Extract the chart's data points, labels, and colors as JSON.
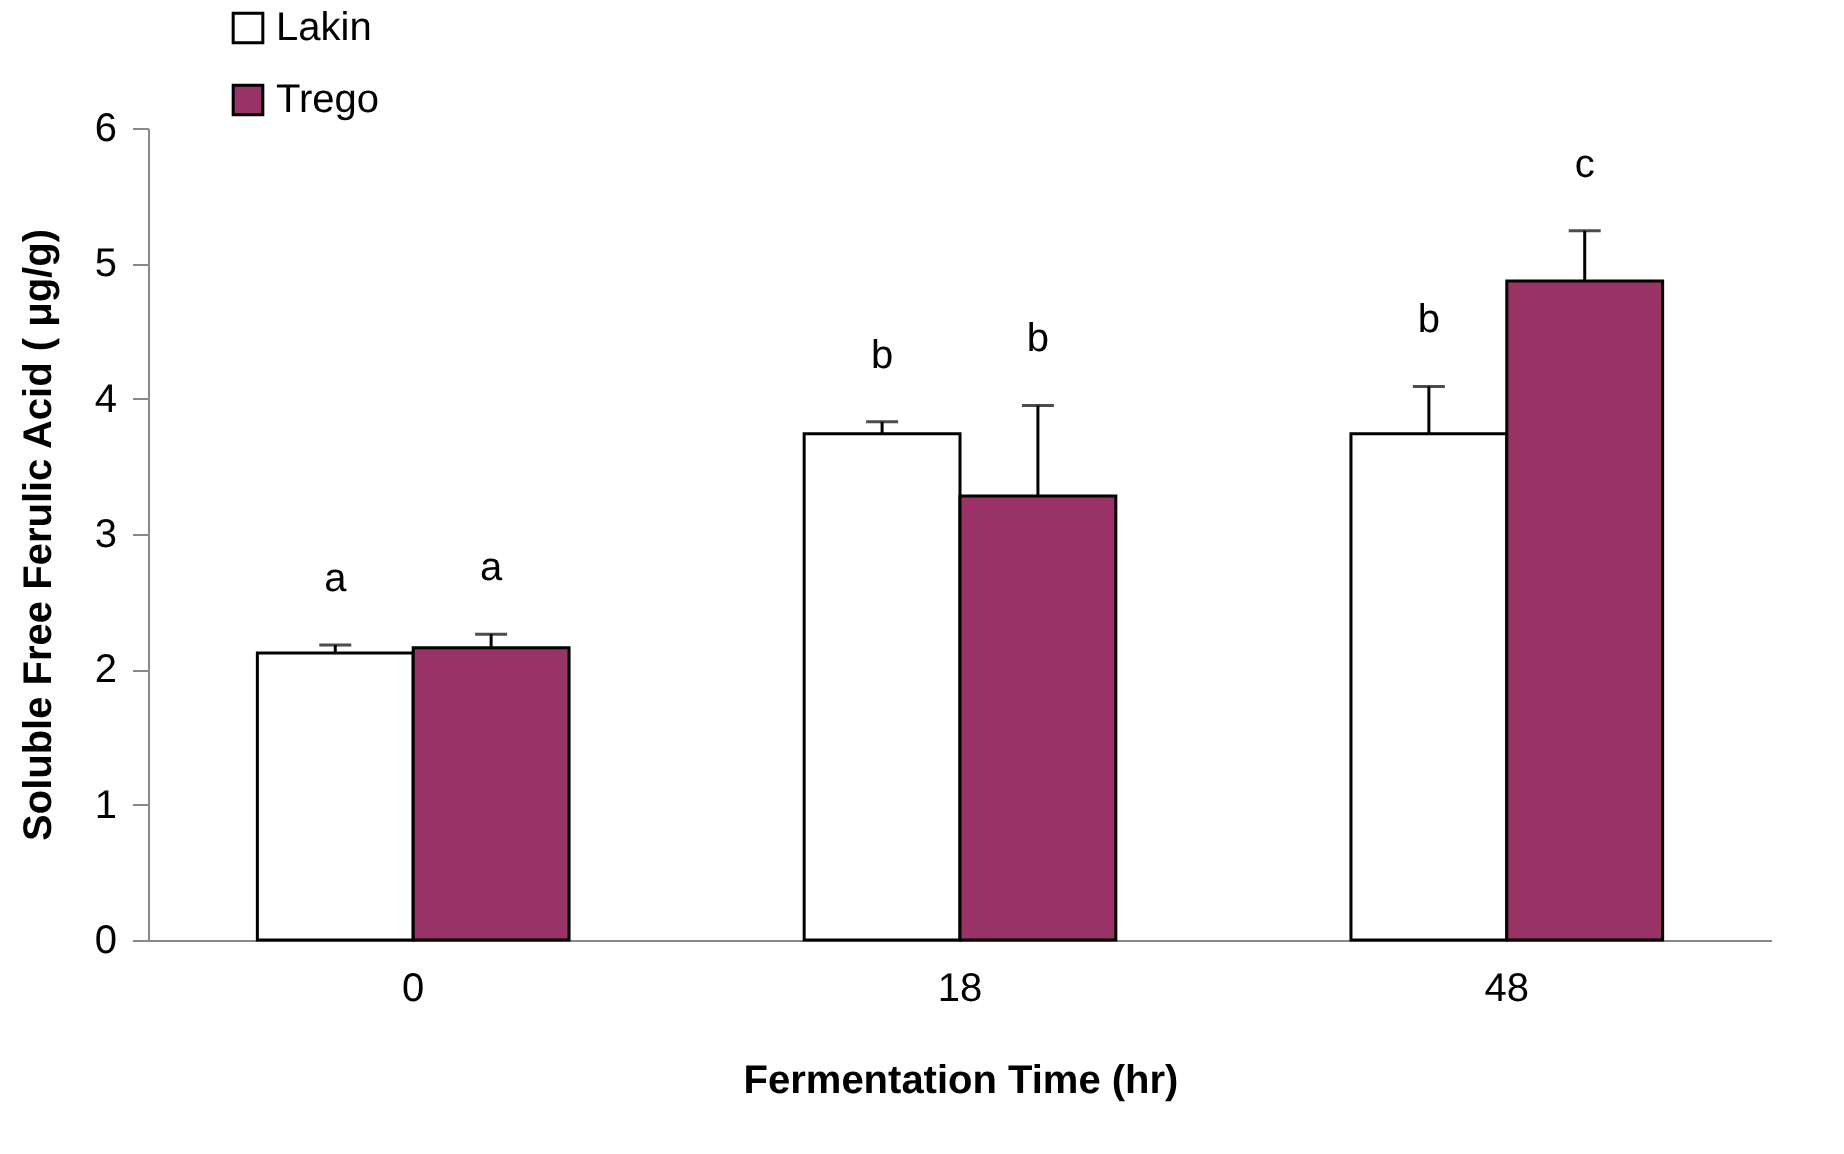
{
  "chart_data": {
    "type": "bar",
    "xlabel": "Fermentation Time (hr)",
    "ylabel": "Soluble Free Ferulic Acid ( μg/g)",
    "categories": [
      "0",
      "18",
      "48"
    ],
    "series": [
      {
        "name": "Lakin",
        "color": "#ffffff",
        "values": [
          2.12,
          3.74,
          3.74
        ],
        "errors": [
          0.06,
          0.09,
          0.35
        ]
      },
      {
        "name": "Trego",
        "color": "#993366",
        "values": [
          2.16,
          3.28,
          4.87
        ],
        "errors": [
          0.1,
          0.67,
          0.37
        ]
      }
    ],
    "ylim": [
      0,
      6
    ],
    "yticks": [
      0,
      1,
      2,
      3,
      4,
      5,
      6
    ],
    "grid": false,
    "legend": "top left",
    "annotations": [
      "a",
      "a",
      "b",
      "b",
      "b",
      "c"
    ]
  }
}
